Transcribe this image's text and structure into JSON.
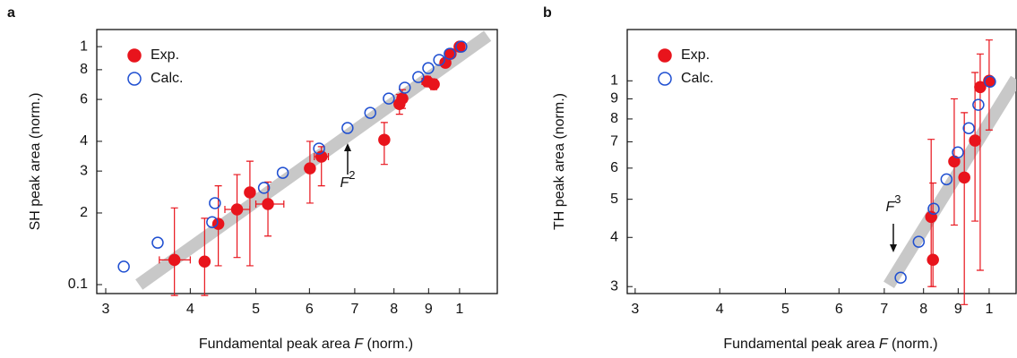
{
  "chart_data": [
    {
      "type": "scatter",
      "panel_label": "a",
      "xlabel": [
        "Fundamental peak area ",
        "F",
        " (norm.)"
      ],
      "ylabel": "SH peak area (norm.)",
      "log_x": true,
      "log_y": true,
      "legend": "upper-left",
      "xlim": [
        0.291,
        1.137
      ],
      "ylim": [
        0.0917,
        1.18
      ],
      "xticks": [
        {
          "value": 0.3,
          "label": "3"
        },
        {
          "value": 0.4,
          "label": "4"
        },
        {
          "value": 0.5,
          "label": "5"
        },
        {
          "value": 0.6,
          "label": "6"
        },
        {
          "value": 0.7,
          "label": "7"
        },
        {
          "value": 0.8,
          "label": "8"
        },
        {
          "value": 0.9,
          "label": "9"
        },
        1
      ],
      "yticks": [
        0.1,
        {
          "value": 0.2,
          "label": "2"
        },
        {
          "value": 0.3,
          "label": "3"
        },
        {
          "value": 0.4,
          "label": "4"
        },
        {
          "value": 0.6,
          "label": "6"
        },
        {
          "value": 0.8,
          "label": "8"
        },
        1
      ],
      "series": [
        {
          "name": "Exp.",
          "color": "#e8141c",
          "marker": "filled",
          "x": [
            0.379,
            0.42,
            0.44,
            0.469,
            0.49,
            0.521,
            0.601,
            0.625,
            0.774,
            0.815,
            0.823,
            0.896,
            0.916,
            0.953,
            0.97,
            1.0
          ],
          "values": [
            0.127,
            0.125,
            0.18,
            0.207,
            0.244,
            0.218,
            0.308,
            0.345,
            0.406,
            0.574,
            0.605,
            0.714,
            0.695,
            0.856,
            0.933,
            1.0
          ],
          "ymin": [
            0.09,
            0.09,
            0.12,
            0.13,
            0.12,
            0.16,
            0.22,
            0.26,
            0.32,
            0.52,
            0.55,
            0.68,
            0.66,
            0.83,
            0.92,
            1.0
          ],
          "ymax": [
            0.21,
            0.19,
            0.26,
            0.29,
            0.33,
            0.27,
            0.4,
            0.38,
            0.48,
            0.63,
            0.66,
            0.75,
            0.73,
            0.88,
            0.95,
            1.0
          ],
          "xmin": [
            0.36,
            null,
            null,
            0.45,
            null,
            0.5,
            null,
            0.61,
            0.765,
            null,
            0.81,
            0.88,
            null,
            null,
            null,
            null
          ],
          "xmax": [
            0.4,
            null,
            null,
            0.49,
            null,
            0.55,
            null,
            0.64,
            0.785,
            null,
            0.835,
            0.91,
            null,
            null,
            null,
            null
          ]
        },
        {
          "name": "Calc.",
          "color": "#1f4fd1",
          "marker": "open",
          "x": [
            0.319,
            0.358,
            0.431,
            0.435,
            0.514,
            0.548,
            0.62,
            0.683,
            0.738,
            0.786,
            0.83,
            0.869,
            0.899,
            0.933,
            0.967,
            1.006
          ],
          "values": [
            0.119,
            0.15,
            0.183,
            0.22,
            0.255,
            0.295,
            0.373,
            0.455,
            0.527,
            0.605,
            0.672,
            0.745,
            0.812,
            0.879,
            0.933,
            1.0
          ]
        }
      ],
      "fit": {
        "color": "#c8c8c8",
        "x": [
          0.336,
          1.1
        ],
        "values": [
          0.1,
          1.11
        ]
      },
      "annotation": {
        "text": "F",
        "sup": "2"
      }
    },
    {
      "type": "scatter",
      "panel_label": "b",
      "xlabel": [
        "Fundamental peak area ",
        "F",
        " (norm.)"
      ],
      "ylabel": "TH peak area (norm.)",
      "log_x": true,
      "log_y": true,
      "legend": "upper-left",
      "xlim": [
        0.292,
        1.096
      ],
      "ylim": [
        0.288,
        1.35
      ],
      "xticks": [
        {
          "value": 0.3,
          "label": "3"
        },
        {
          "value": 0.4,
          "label": "4"
        },
        {
          "value": 0.5,
          "label": "5"
        },
        {
          "value": 0.6,
          "label": "6"
        },
        {
          "value": 0.7,
          "label": "7"
        },
        {
          "value": 0.8,
          "label": "8"
        },
        {
          "value": 0.9,
          "label": "9"
        },
        1
      ],
      "yticks": [
        {
          "value": 0.3,
          "label": "3"
        },
        {
          "value": 0.4,
          "label": "4"
        },
        {
          "value": 0.5,
          "label": "5"
        },
        {
          "value": 0.6,
          "label": "6"
        },
        {
          "value": 0.7,
          "label": "7"
        },
        {
          "value": 0.8,
          "label": "8"
        },
        {
          "value": 0.9,
          "label": "9"
        },
        1
      ],
      "series": [
        {
          "name": "Exp.",
          "color": "#e8141c",
          "marker": "filled",
          "x": [
            0.821,
            0.826,
            0.888,
            0.919,
            0.953,
            0.97,
            1.0
          ],
          "values": [
            0.451,
            0.351,
            0.624,
            0.568,
            0.705,
            0.964,
            1.0
          ],
          "ymin": [
            0.3,
            0.3,
            0.43,
            0.27,
            0.44,
            0.33,
            0.75
          ],
          "ymax": [
            0.71,
            0.55,
            0.9,
            0.83,
            1.05,
            1.17,
            1.27
          ]
        },
        {
          "name": "Calc.",
          "color": "#1f4fd1",
          "marker": "open",
          "x": [
            0.74,
            0.787,
            0.828,
            0.865,
            0.899,
            0.933,
            0.964,
            1.003
          ],
          "values": [
            0.316,
            0.39,
            0.473,
            0.562,
            0.658,
            0.758,
            0.869,
            0.995
          ]
        }
      ],
      "fit": {
        "color": "#c8c8c8",
        "x": [
          0.711,
          1.096
        ],
        "values": [
          0.303,
          1.01
        ]
      },
      "annotation": {
        "text": "F",
        "sup": "3"
      }
    }
  ]
}
